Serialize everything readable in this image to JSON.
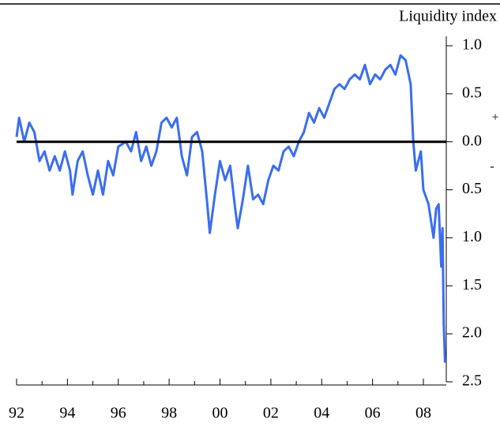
{
  "chart_data": {
    "type": "line",
    "title": "Liquidity index",
    "annotations": [
      "+",
      "-"
    ],
    "xlim": [
      1992,
      2008.9
    ],
    "xticks": [
      {
        "value": 1992,
        "label": "92"
      },
      {
        "value": 1994,
        "label": "94"
      },
      {
        "value": 1996,
        "label": "96"
      },
      {
        "value": 1998,
        "label": "98"
      },
      {
        "value": 2000,
        "label": "00"
      },
      {
        "value": 2002,
        "label": "02"
      },
      {
        "value": 2004,
        "label": "04"
      },
      {
        "value": 2006,
        "label": "06"
      },
      {
        "value": 2008,
        "label": "08"
      }
    ],
    "xminorticks": [
      1993,
      1995,
      1997,
      1999,
      2001,
      2003,
      2005,
      2007
    ],
    "ylim": [
      -2.5,
      1.0
    ],
    "yticks": [
      {
        "value": 1.0,
        "label": "1.0"
      },
      {
        "value": 0.5,
        "label": "0.5"
      },
      {
        "value": 0,
        "label": "0.0"
      },
      {
        "value": -0.5,
        "label": "0.5"
      },
      {
        "value": -1.0,
        "label": "1.0"
      },
      {
        "value": -1.5,
        "label": "1.5"
      },
      {
        "value": -2.0,
        "label": "2.0"
      },
      {
        "value": -2.5,
        "label": "2.5"
      }
    ],
    "hline": 0,
    "hline_color": "#000000",
    "series": [
      {
        "color": "#3a6ef0",
        "x": [
          1992.0,
          1992.1,
          1992.3,
          1992.5,
          1992.7,
          1992.9,
          1993.1,
          1993.3,
          1993.5,
          1993.7,
          1993.9,
          1994.1,
          1994.2,
          1994.4,
          1994.6,
          1994.8,
          1995.0,
          1995.2,
          1995.4,
          1995.6,
          1995.8,
          1996.0,
          1996.3,
          1996.5,
          1996.7,
          1996.9,
          1997.1,
          1997.3,
          1997.5,
          1997.7,
          1997.9,
          1998.1,
          1998.3,
          1998.5,
          1998.7,
          1998.9,
          1999.1,
          1999.3,
          1999.5,
          1999.6,
          1999.8,
          2000.0,
          2000.2,
          2000.4,
          2000.6,
          2000.7,
          2000.9,
          2001.1,
          2001.3,
          2001.5,
          2001.7,
          2001.9,
          2002.1,
          2002.3,
          2002.5,
          2002.7,
          2002.9,
          2003.1,
          2003.3,
          2003.5,
          2003.7,
          2003.9,
          2004.1,
          2004.3,
          2004.5,
          2004.7,
          2004.9,
          2005.1,
          2005.3,
          2005.5,
          2005.7,
          2005.9,
          2006.1,
          2006.3,
          2006.5,
          2006.7,
          2006.9,
          2007.1,
          2007.3,
          2007.5,
          2007.6,
          2007.7,
          2007.9,
          2008.0,
          2008.2,
          2008.4,
          2008.5,
          2008.6,
          2008.7,
          2008.75,
          2008.8,
          2008.85
        ],
        "values": [
          0.05,
          0.25,
          0.0,
          0.2,
          0.1,
          -0.2,
          -0.1,
          -0.3,
          -0.15,
          -0.3,
          -0.1,
          -0.3,
          -0.55,
          -0.2,
          -0.1,
          -0.35,
          -0.55,
          -0.3,
          -0.55,
          -0.2,
          -0.35,
          -0.05,
          0.0,
          -0.1,
          0.1,
          -0.2,
          -0.05,
          -0.25,
          -0.1,
          0.2,
          0.25,
          0.15,
          0.25,
          -0.15,
          -0.35,
          0.05,
          0.1,
          -0.1,
          -0.65,
          -0.95,
          -0.55,
          -0.2,
          -0.4,
          -0.25,
          -0.7,
          -0.9,
          -0.6,
          -0.25,
          -0.6,
          -0.55,
          -0.65,
          -0.4,
          -0.25,
          -0.3,
          -0.1,
          -0.05,
          -0.15,
          0.0,
          0.1,
          0.3,
          0.2,
          0.35,
          0.25,
          0.4,
          0.55,
          0.6,
          0.55,
          0.65,
          0.7,
          0.65,
          0.8,
          0.6,
          0.7,
          0.65,
          0.75,
          0.8,
          0.7,
          0.9,
          0.85,
          0.6,
          0.0,
          -0.3,
          -0.1,
          -0.5,
          -0.65,
          -1.0,
          -0.7,
          -0.65,
          -1.3,
          -0.9,
          -1.9,
          -2.3
        ]
      }
    ]
  }
}
